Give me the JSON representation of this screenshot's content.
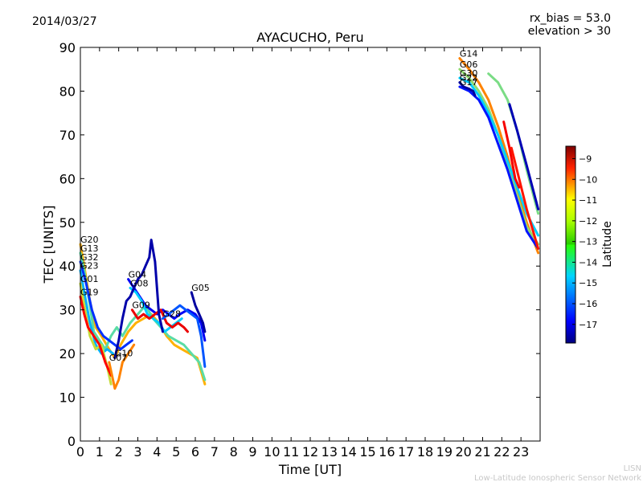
{
  "header": {
    "date": "2014/03/27",
    "rx_bias": "rx_bias = 53.0",
    "elevation": "elevation > 30"
  },
  "footer": {
    "line1": "LISN",
    "line2": "Low-Latitude Ionospheric Sensor Network"
  },
  "chart_data": {
    "type": "line",
    "title": "AYACUCHO, Peru",
    "xlabel": "Time [UT]",
    "ylabel": "TEC [UNITS]",
    "xlim": [
      0,
      24
    ],
    "ylim": [
      0,
      90
    ],
    "xticks": [
      0,
      1,
      2,
      3,
      4,
      5,
      6,
      7,
      8,
      9,
      10,
      11,
      12,
      13,
      14,
      15,
      16,
      17,
      18,
      19,
      20,
      21,
      22,
      23
    ],
    "yticks": [
      0,
      10,
      20,
      30,
      40,
      50,
      60,
      70,
      80,
      90
    ],
    "colorbar": {
      "label": "Latitude",
      "range": [
        -17.9,
        -8.4
      ],
      "ticks": [
        -9,
        -10,
        -11,
        -12,
        -13,
        -14,
        -15,
        -16,
        -17
      ],
      "tick_labels": [
        "−9",
        "−10",
        "−11",
        "−12",
        "−13",
        "−14",
        "−15",
        "−16",
        "−17"
      ]
    },
    "series": [
      {
        "name": "G20",
        "lat": -11.5,
        "points": [
          [
            0.0,
            45
          ],
          [
            0.2,
            40
          ],
          [
            0.5,
            32
          ],
          [
            0.8,
            26
          ],
          [
            1.1,
            24
          ],
          [
            1.5,
            21
          ],
          [
            1.8,
            19
          ],
          [
            2.1,
            22
          ],
          [
            2.5,
            25
          ],
          [
            2.9,
            27
          ],
          [
            3.3,
            28
          ],
          [
            3.7,
            29
          ],
          [
            4.1,
            27
          ],
          [
            4.5,
            24
          ],
          [
            4.9,
            22
          ],
          [
            5.3,
            21
          ],
          [
            5.7,
            20
          ],
          [
            6.1,
            19
          ],
          [
            6.5,
            13
          ]
        ]
      },
      {
        "name": "G13",
        "lat": -13.5,
        "points": [
          [
            0.0,
            43
          ],
          [
            0.2,
            39
          ],
          [
            0.5,
            31
          ],
          [
            0.7,
            25
          ],
          [
            1.0,
            23
          ],
          [
            1.3,
            21
          ],
          [
            1.6,
            24
          ],
          [
            1.9,
            26
          ],
          [
            2.2,
            24
          ],
          [
            2.6,
            27
          ],
          [
            3.0,
            29
          ],
          [
            3.4,
            31
          ],
          [
            3.8,
            28
          ],
          [
            4.2,
            26
          ],
          [
            4.6,
            24
          ],
          [
            5.0,
            23
          ],
          [
            5.4,
            22
          ],
          [
            5.8,
            20
          ],
          [
            6.2,
            18
          ],
          [
            6.5,
            14
          ]
        ]
      },
      {
        "name": "G32",
        "lat": -16.2,
        "points": [
          [
            0.0,
            41
          ],
          [
            0.3,
            36
          ],
          [
            0.6,
            30
          ],
          [
            0.9,
            26
          ],
          [
            1.2,
            24
          ],
          [
            1.5,
            23
          ],
          [
            1.8,
            22
          ],
          [
            2.1,
            21
          ],
          [
            2.4,
            22
          ],
          [
            2.7,
            23
          ]
        ]
      },
      {
        "name": "G23",
        "lat": -14.8,
        "points": [
          [
            0.0,
            39
          ],
          [
            0.2,
            34
          ],
          [
            0.5,
            27
          ],
          [
            0.8,
            22
          ],
          [
            1.1,
            20
          ],
          [
            1.4,
            21
          ],
          [
            1.7,
            20
          ]
        ]
      },
      {
        "name": "G01",
        "lat": -12.5,
        "points": [
          [
            0.0,
            36
          ],
          [
            0.2,
            31
          ],
          [
            0.5,
            24
          ],
          [
            0.8,
            21
          ],
          [
            1.1,
            22
          ],
          [
            1.4,
            17
          ],
          [
            1.6,
            13
          ]
        ]
      },
      {
        "name": "G19",
        "lat": -9.6,
        "points": [
          [
            0.0,
            33
          ],
          [
            0.2,
            29
          ],
          [
            0.4,
            26
          ],
          [
            0.7,
            24
          ],
          [
            1.0,
            22
          ],
          [
            1.3,
            18
          ],
          [
            1.6,
            15
          ]
        ]
      },
      {
        "name": "G07",
        "lat": -11.0,
        "points": [
          [
            1.5,
            18
          ],
          [
            1.8,
            12
          ],
          [
            2.0,
            14
          ],
          [
            2.2,
            18
          ],
          [
            2.5,
            20
          ],
          [
            2.8,
            22
          ]
        ]
      },
      {
        "name": "G04",
        "lat": -16.8,
        "points": [
          [
            2.5,
            37
          ],
          [
            2.8,
            35
          ],
          [
            3.1,
            33
          ],
          [
            3.4,
            31
          ],
          [
            3.7,
            30
          ],
          [
            4.0,
            29
          ],
          [
            4.3,
            30
          ],
          [
            4.6,
            29
          ],
          [
            4.9,
            28
          ],
          [
            5.2,
            29
          ],
          [
            5.6,
            30
          ],
          [
            6.0,
            29
          ],
          [
            6.3,
            27
          ],
          [
            6.5,
            23
          ]
        ]
      },
      {
        "name": "G08",
        "lat": -14.5,
        "points": [
          [
            2.6,
            35
          ],
          [
            2.9,
            34
          ],
          [
            3.2,
            32
          ],
          [
            3.5,
            29
          ],
          [
            3.8,
            28
          ],
          [
            4.1,
            27
          ],
          [
            4.4,
            25
          ],
          [
            4.7,
            26
          ],
          [
            5.0,
            27
          ],
          [
            5.3,
            28
          ]
        ]
      },
      {
        "name": "G09",
        "lat": -9.4,
        "points": [
          [
            2.7,
            30
          ],
          [
            3.0,
            28
          ],
          [
            3.3,
            29
          ],
          [
            3.6,
            28
          ],
          [
            3.9,
            29
          ],
          [
            4.2,
            30
          ],
          [
            4.5,
            27
          ],
          [
            4.8,
            26
          ],
          [
            5.1,
            27
          ],
          [
            5.4,
            26
          ],
          [
            5.6,
            25
          ]
        ]
      },
      {
        "name": "G10",
        "lat": -17.5,
        "points": [
          [
            1.8,
            19
          ],
          [
            2.0,
            23
          ],
          [
            2.2,
            28
          ],
          [
            2.4,
            32
          ],
          [
            2.6,
            33
          ],
          [
            2.8,
            35
          ],
          [
            3.0,
            37
          ],
          [
            3.2,
            38
          ],
          [
            3.4,
            40
          ],
          [
            3.6,
            42
          ],
          [
            3.7,
            46
          ],
          [
            3.9,
            41
          ],
          [
            4.0,
            35
          ],
          [
            4.1,
            29
          ],
          [
            4.3,
            25
          ]
        ]
      },
      {
        "name": "G28",
        "lat": -15.8,
        "points": [
          [
            4.3,
            28
          ],
          [
            4.6,
            29
          ],
          [
            4.9,
            30
          ],
          [
            5.2,
            31
          ],
          [
            5.5,
            30
          ],
          [
            5.8,
            29
          ],
          [
            6.1,
            28
          ],
          [
            6.3,
            24
          ],
          [
            6.5,
            17
          ]
        ]
      },
      {
        "name": "G05",
        "lat": -17.6,
        "points": [
          [
            5.8,
            34
          ],
          [
            6.0,
            31
          ],
          [
            6.2,
            29
          ],
          [
            6.4,
            27
          ],
          [
            6.5,
            25
          ]
        ]
      },
      {
        "name": "G14",
        "lat": -11.0,
        "points": [
          [
            19.8,
            87.5
          ],
          [
            20.3,
            85
          ],
          [
            20.8,
            82
          ],
          [
            21.3,
            78
          ],
          [
            21.8,
            72
          ],
          [
            22.3,
            65
          ],
          [
            22.8,
            57
          ],
          [
            23.3,
            50
          ],
          [
            23.9,
            43
          ]
        ]
      },
      {
        "name": "G06",
        "lat": -13.0,
        "points": [
          [
            19.8,
            85
          ],
          [
            20.3,
            83
          ],
          [
            20.8,
            80
          ],
          [
            21.3,
            76
          ],
          [
            21.8,
            70
          ],
          [
            22.3,
            63
          ],
          [
            22.8,
            56
          ],
          [
            23.3,
            49
          ],
          [
            23.9,
            45
          ]
        ]
      },
      {
        "name": "G30",
        "lat": -14.5,
        "points": [
          [
            19.8,
            83
          ],
          [
            20.3,
            82
          ],
          [
            20.8,
            79
          ],
          [
            21.3,
            75
          ],
          [
            21.8,
            70
          ],
          [
            22.3,
            64
          ],
          [
            22.8,
            58
          ],
          [
            23.3,
            52
          ],
          [
            23.9,
            47
          ]
        ]
      },
      {
        "name": "G17",
        "lat": -16.5,
        "points": [
          [
            19.8,
            81
          ],
          [
            20.3,
            80
          ],
          [
            20.8,
            78
          ],
          [
            21.3,
            74
          ],
          [
            21.8,
            68
          ],
          [
            22.3,
            62
          ],
          [
            22.8,
            55
          ],
          [
            23.3,
            48
          ],
          [
            23.9,
            44
          ]
        ]
      },
      {
        "name": "G22",
        "lat": -17.6,
        "points": [
          [
            19.8,
            82
          ],
          [
            20.0,
            81
          ],
          [
            20.3,
            80.5
          ],
          [
            20.5,
            80
          ],
          [
            20.6,
            79
          ]
        ]
      },
      {
        "name": "",
        "lat": -13.2,
        "points": [
          [
            21.3,
            84
          ],
          [
            21.8,
            82
          ],
          [
            22.3,
            78
          ],
          [
            22.8,
            71
          ],
          [
            23.3,
            62
          ],
          [
            23.9,
            52
          ]
        ]
      },
      {
        "name": "",
        "lat": -17.4,
        "points": [
          [
            22.4,
            77
          ],
          [
            22.8,
            71
          ],
          [
            23.3,
            63
          ],
          [
            23.9,
            53
          ]
        ]
      },
      {
        "name": "",
        "lat": -9.5,
        "points": [
          [
            22.1,
            73
          ],
          [
            22.4,
            67
          ],
          [
            22.7,
            60
          ],
          [
            22.9,
            58
          ]
        ]
      },
      {
        "name": "",
        "lat": -9.8,
        "points": [
          [
            22.5,
            67
          ],
          [
            22.9,
            60
          ],
          [
            23.3,
            53
          ],
          [
            23.9,
            44
          ]
        ]
      }
    ]
  }
}
